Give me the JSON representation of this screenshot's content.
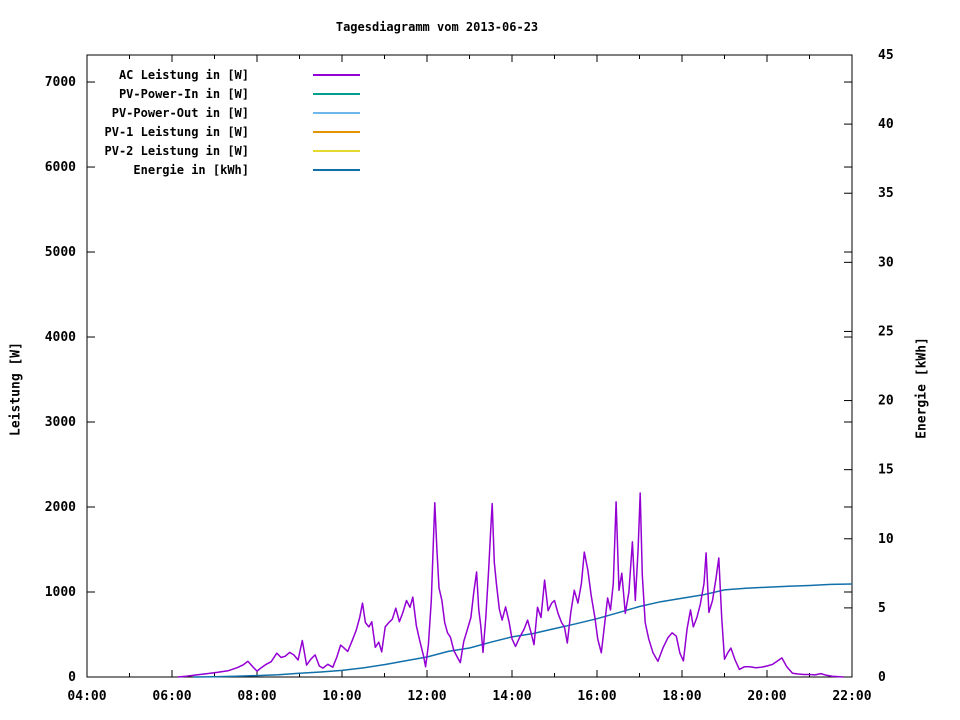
{
  "title": "Tagesdiagramm vom 2013-06-23",
  "axes": {
    "left_label": "Leistung [W]",
    "right_label": "Energie [kWh]",
    "x_tick_labels": [
      "04:00",
      "06:00",
      "08:00",
      "10:00",
      "12:00",
      "14:00",
      "16:00",
      "18:00",
      "20:00",
      "22:00"
    ],
    "y_tick_labels": [
      "0",
      "1000",
      "2000",
      "3000",
      "4000",
      "5000",
      "6000",
      "7000"
    ],
    "y2_tick_labels": [
      "0",
      "5",
      "10",
      "15",
      "20",
      "25",
      "30",
      "35",
      "40",
      "45"
    ]
  },
  "chart_data": {
    "type": "line",
    "title": "Tagesdiagramm vom 2013-06-23",
    "xlabel": "",
    "ylabel": "Leistung [W]",
    "y2label": "Energie [kWh]",
    "x_range_minutes": [
      240,
      1320
    ],
    "x_ticks": [
      "04:00",
      "06:00",
      "08:00",
      "10:00",
      "12:00",
      "14:00",
      "16:00",
      "18:00",
      "20:00",
      "22:00"
    ],
    "x_minor_tick_minutes": [
      300,
      420,
      540,
      660,
      780,
      900,
      1020,
      1140,
      1260
    ],
    "y_ticks": [
      0,
      1000,
      2000,
      3000,
      4000,
      5000,
      6000,
      7000
    ],
    "y_max": 7318,
    "y2_ticks": [
      0,
      5,
      10,
      15,
      20,
      25,
      30,
      35,
      40,
      45
    ],
    "y2_max": 45,
    "grid": false,
    "legend_position": "top-left-inside",
    "series": [
      {
        "id": "ac-leistung",
        "name": "AC Leistung in [W]",
        "axis": "y",
        "color": "#9400d3",
        "points": [
          [
            "06:08",
            0
          ],
          [
            "06:20",
            10
          ],
          [
            "06:35",
            25
          ],
          [
            "06:50",
            40
          ],
          [
            "07:05",
            55
          ],
          [
            "07:20",
            75
          ],
          [
            "07:32",
            110
          ],
          [
            "07:40",
            140
          ],
          [
            "07:47",
            185
          ],
          [
            "07:54",
            120
          ],
          [
            "08:00",
            70
          ],
          [
            "08:06",
            110
          ],
          [
            "08:13",
            150
          ],
          [
            "08:20",
            180
          ],
          [
            "08:28",
            280
          ],
          [
            "08:34",
            230
          ],
          [
            "08:40",
            245
          ],
          [
            "08:46",
            290
          ],
          [
            "08:52",
            260
          ],
          [
            "08:58",
            200
          ],
          [
            "09:04",
            430
          ],
          [
            "09:10",
            140
          ],
          [
            "09:16",
            210
          ],
          [
            "09:22",
            260
          ],
          [
            "09:28",
            130
          ],
          [
            "09:33",
            105
          ],
          [
            "09:40",
            150
          ],
          [
            "09:47",
            115
          ],
          [
            "09:53",
            240
          ],
          [
            "09:58",
            375
          ],
          [
            "10:03",
            340
          ],
          [
            "10:08",
            300
          ],
          [
            "10:14",
            420
          ],
          [
            "10:20",
            550
          ],
          [
            "10:25",
            700
          ],
          [
            "10:29",
            870
          ],
          [
            "10:33",
            640
          ],
          [
            "10:38",
            590
          ],
          [
            "10:42",
            650
          ],
          [
            "10:47",
            350
          ],
          [
            "10:52",
            410
          ],
          [
            "10:56",
            295
          ],
          [
            "11:01",
            590
          ],
          [
            "11:06",
            640
          ],
          [
            "11:11",
            680
          ],
          [
            "11:16",
            810
          ],
          [
            "11:21",
            650
          ],
          [
            "11:26",
            760
          ],
          [
            "11:31",
            900
          ],
          [
            "11:36",
            820
          ],
          [
            "11:40",
            940
          ],
          [
            "11:45",
            600
          ],
          [
            "11:50",
            420
          ],
          [
            "11:55",
            250
          ],
          [
            "11:58",
            120
          ],
          [
            "12:02",
            380
          ],
          [
            "12:06",
            900
          ],
          [
            "12:09",
            1600
          ],
          [
            "12:11",
            2050
          ],
          [
            "12:14",
            1500
          ],
          [
            "12:17",
            1050
          ],
          [
            "12:21",
            900
          ],
          [
            "12:25",
            640
          ],
          [
            "12:29",
            520
          ],
          [
            "12:33",
            470
          ],
          [
            "12:38",
            310
          ],
          [
            "12:43",
            230
          ],
          [
            "12:47",
            170
          ],
          [
            "12:52",
            420
          ],
          [
            "12:57",
            560
          ],
          [
            "13:02",
            700
          ],
          [
            "13:06",
            1000
          ],
          [
            "13:10",
            1235
          ],
          [
            "13:13",
            800
          ],
          [
            "13:16",
            600
          ],
          [
            "13:19",
            290
          ],
          [
            "13:23",
            700
          ],
          [
            "13:27",
            1250
          ],
          [
            "13:30",
            1750
          ],
          [
            "13:32",
            2040
          ],
          [
            "13:35",
            1350
          ],
          [
            "13:38",
            1100
          ],
          [
            "13:42",
            800
          ],
          [
            "13:46",
            670
          ],
          [
            "13:51",
            825
          ],
          [
            "13:56",
            640
          ],
          [
            "14:00",
            450
          ],
          [
            "14:05",
            360
          ],
          [
            "14:11",
            470
          ],
          [
            "14:17",
            560
          ],
          [
            "14:22",
            670
          ],
          [
            "14:27",
            520
          ],
          [
            "14:31",
            380
          ],
          [
            "14:36",
            820
          ],
          [
            "14:41",
            700
          ],
          [
            "14:46",
            1140
          ],
          [
            "14:51",
            780
          ],
          [
            "14:56",
            870
          ],
          [
            "15:00",
            900
          ],
          [
            "15:05",
            750
          ],
          [
            "15:10",
            640
          ],
          [
            "15:14",
            590
          ],
          [
            "15:18",
            400
          ],
          [
            "15:23",
            760
          ],
          [
            "15:28",
            1020
          ],
          [
            "15:33",
            870
          ],
          [
            "15:38",
            1100
          ],
          [
            "15:42",
            1470
          ],
          [
            "15:47",
            1260
          ],
          [
            "15:52",
            950
          ],
          [
            "15:57",
            700
          ],
          [
            "16:01",
            450
          ],
          [
            "16:06",
            285
          ],
          [
            "16:11",
            640
          ],
          [
            "16:15",
            930
          ],
          [
            "16:19",
            790
          ],
          [
            "16:23",
            1100
          ],
          [
            "16:27",
            2060
          ],
          [
            "16:31",
            1020
          ],
          [
            "16:35",
            1220
          ],
          [
            "16:40",
            750
          ],
          [
            "16:45",
            1000
          ],
          [
            "16:50",
            1590
          ],
          [
            "16:54",
            900
          ],
          [
            "16:58",
            1500
          ],
          [
            "17:01",
            2165
          ],
          [
            "17:04",
            1200
          ],
          [
            "17:08",
            640
          ],
          [
            "17:13",
            450
          ],
          [
            "17:19",
            285
          ],
          [
            "17:26",
            185
          ],
          [
            "17:33",
            340
          ],
          [
            "17:40",
            460
          ],
          [
            "17:46",
            520
          ],
          [
            "17:52",
            480
          ],
          [
            "17:57",
            280
          ],
          [
            "18:02",
            190
          ],
          [
            "18:07",
            560
          ],
          [
            "18:12",
            790
          ],
          [
            "18:16",
            590
          ],
          [
            "18:21",
            700
          ],
          [
            "18:26",
            860
          ],
          [
            "18:31",
            1100
          ],
          [
            "18:34",
            1460
          ],
          [
            "18:38",
            760
          ],
          [
            "18:43",
            900
          ],
          [
            "18:48",
            1160
          ],
          [
            "18:52",
            1400
          ],
          [
            "18:56",
            700
          ],
          [
            "19:00",
            210
          ],
          [
            "19:05",
            290
          ],
          [
            "19:09",
            340
          ],
          [
            "19:15",
            200
          ],
          [
            "19:21",
            90
          ],
          [
            "19:28",
            120
          ],
          [
            "19:36",
            120
          ],
          [
            "19:44",
            110
          ],
          [
            "19:52",
            115
          ],
          [
            "20:00",
            130
          ],
          [
            "20:08",
            150
          ],
          [
            "20:15",
            190
          ],
          [
            "20:21",
            225
          ],
          [
            "20:28",
            120
          ],
          [
            "20:36",
            45
          ],
          [
            "20:44",
            35
          ],
          [
            "20:52",
            30
          ],
          [
            "21:00",
            30
          ],
          [
            "21:08",
            25
          ],
          [
            "21:16",
            40
          ],
          [
            "21:24",
            20
          ],
          [
            "21:32",
            10
          ],
          [
            "21:40",
            5
          ],
          [
            "21:48",
            0
          ]
        ]
      },
      {
        "id": "pv-power-in",
        "name": "PV-Power-In in [W]",
        "axis": "y",
        "color": "#009e8c",
        "points": []
      },
      {
        "id": "pv-power-out",
        "name": "PV-Power-Out in [W]",
        "axis": "y",
        "color": "#6fb7e9",
        "points": []
      },
      {
        "id": "pv1-leistung",
        "name": "PV-1 Leistung in [W]",
        "axis": "y",
        "color": "#e59400",
        "points": []
      },
      {
        "id": "pv2-leistung",
        "name": "PV-2 Leistung in [W]",
        "axis": "y",
        "color": "#e6d92e",
        "points": []
      },
      {
        "id": "energie",
        "name": "Energie in [kWh]",
        "axis": "y2",
        "color": "#1170aa",
        "points": [
          [
            "06:30",
            0
          ],
          [
            "07:00",
            0.02
          ],
          [
            "07:30",
            0.05
          ],
          [
            "08:00",
            0.1
          ],
          [
            "08:30",
            0.17
          ],
          [
            "09:00",
            0.27
          ],
          [
            "09:30",
            0.36
          ],
          [
            "10:00",
            0.48
          ],
          [
            "10:30",
            0.66
          ],
          [
            "11:00",
            0.9
          ],
          [
            "11:30",
            1.18
          ],
          [
            "12:00",
            1.45
          ],
          [
            "12:30",
            1.85
          ],
          [
            "13:00",
            2.1
          ],
          [
            "13:30",
            2.52
          ],
          [
            "14:00",
            2.9
          ],
          [
            "14:30",
            3.15
          ],
          [
            "15:00",
            3.5
          ],
          [
            "15:30",
            3.85
          ],
          [
            "16:00",
            4.22
          ],
          [
            "16:30",
            4.65
          ],
          [
            "17:00",
            5.1
          ],
          [
            "17:30",
            5.45
          ],
          [
            "18:00",
            5.7
          ],
          [
            "18:30",
            5.95
          ],
          [
            "19:00",
            6.3
          ],
          [
            "19:30",
            6.42
          ],
          [
            "20:00",
            6.5
          ],
          [
            "20:30",
            6.57
          ],
          [
            "21:00",
            6.62
          ],
          [
            "21:30",
            6.7
          ],
          [
            "22:00",
            6.73
          ]
        ]
      }
    ]
  }
}
